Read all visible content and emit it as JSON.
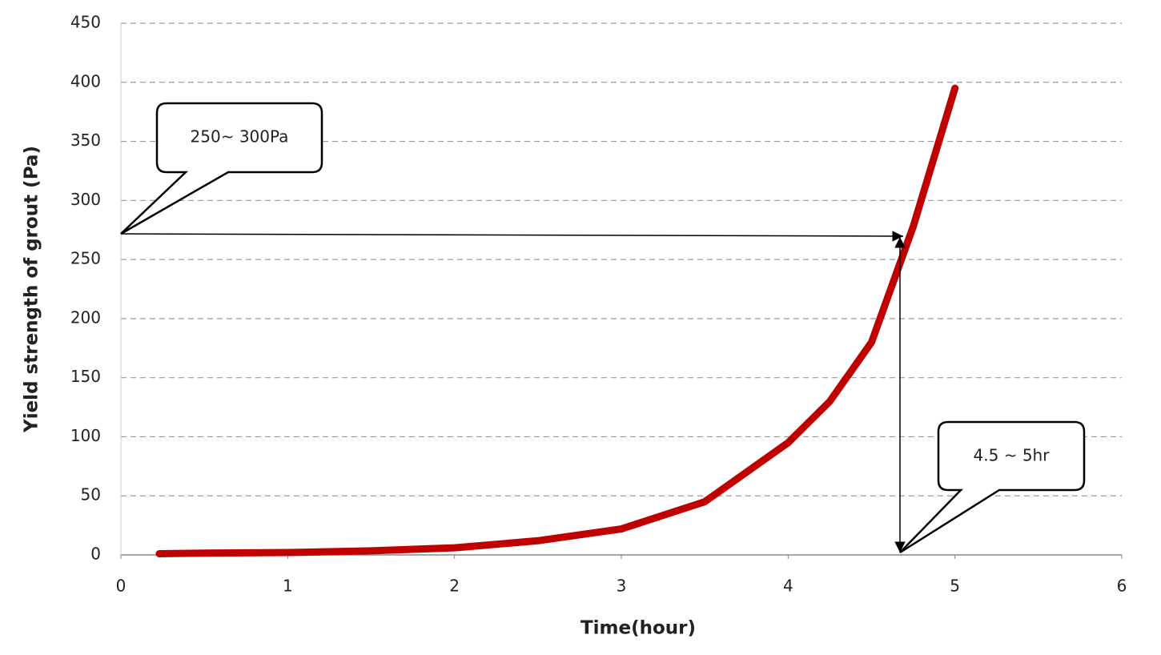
{
  "chart_data": {
    "type": "line",
    "x_label": "Time(hour)",
    "y_label": "Yield strength of grout (Pa)",
    "annotations": [
      "250~ 300Pa",
      "4.5 ~ 5hr"
    ],
    "x": [
      0.23,
      0.5,
      1,
      1.5,
      2,
      2.5,
      3,
      3.5,
      4,
      4.25,
      4.5,
      4.75,
      5
    ],
    "series": [
      {
        "name": "Yield strength",
        "color": "#c00000",
        "values": [
          1,
          1.5,
          2,
          3.5,
          6,
          12,
          22,
          45,
          95,
          130,
          180,
          278,
          395
        ]
      }
    ],
    "xlim": [
      0,
      6
    ],
    "xticks": [
      0,
      1,
      2,
      3,
      4,
      5,
      6
    ],
    "ylim": [
      0,
      450
    ],
    "yticks": [
      0,
      50,
      100,
      150,
      200,
      250,
      300,
      350,
      400,
      450
    ],
    "grid": true
  }
}
